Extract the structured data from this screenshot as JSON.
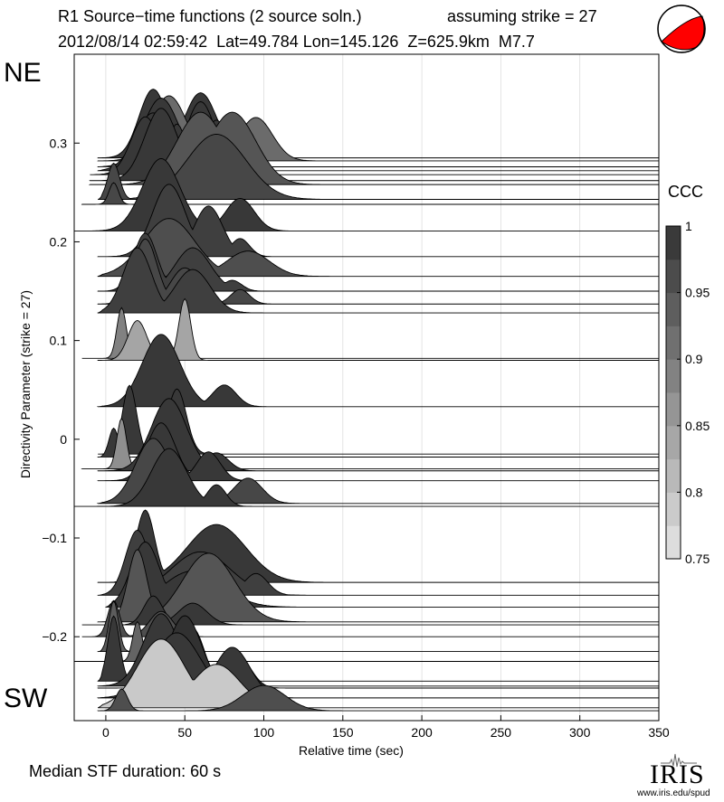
{
  "header": {
    "title_left": "R1 Source−time functions (2 source soln.)",
    "title_right": "assuming strike = 27",
    "event_line": "2012/08/14 02:59:42  Lat=49.784 Lon=145.126  Z=625.9km  M7.7"
  },
  "labels": {
    "ne": "NE",
    "sw": "SW"
  },
  "footer": {
    "median": "Median STF duration: 60 s",
    "logo_text": "IRIS",
    "logo_url": "www.iris.edu/spud"
  },
  "colors": {
    "fill_base": "#333333",
    "outline": "#000000",
    "grid": "#dddddd"
  },
  "chart_data": {
    "type": "area",
    "xlabel": "Relative time (sec)",
    "ylabel": "Directivity Parameter (strike = 27)",
    "xlim": [
      -20,
      350
    ],
    "ylim": [
      -0.285,
      0.39
    ],
    "xticks": [
      0,
      50,
      100,
      150,
      200,
      250,
      300,
      350
    ],
    "yticks": [
      -0.2,
      -0.1,
      0,
      0.1,
      0.2,
      0.3
    ],
    "ytick_labels": [
      "−0.2",
      "−0.1",
      "0",
      "0.1",
      "0.2",
      "0.3"
    ],
    "colorbar": {
      "label": "CCC",
      "ticks": [
        0.75,
        0.8,
        0.85,
        0.9,
        0.95,
        1
      ],
      "tick_labels": [
        "0.75",
        "0.8",
        "0.85",
        "0.9",
        "0.95",
        "1"
      ],
      "range": [
        0.75,
        1
      ]
    },
    "stfs": [
      {
        "y": 0.285,
        "t0": -5,
        "ccc": 0.99,
        "peaks": [
          [
            30,
            0.95,
            12
          ],
          [
            60,
            0.9,
            14
          ]
        ]
      },
      {
        "y": 0.282,
        "t0": -5,
        "ccc": 0.92,
        "peaks": [
          [
            40,
            0.9,
            15
          ],
          [
            95,
            0.6,
            14
          ]
        ]
      },
      {
        "y": 0.276,
        "t0": -5,
        "ccc": 0.99,
        "peaks": [
          [
            35,
            0.95,
            15
          ],
          [
            60,
            0.9,
            12
          ]
        ]
      },
      {
        "y": 0.272,
        "t0": -5,
        "ccc": 0.99,
        "peaks": [
          [
            30,
            0.8,
            15
          ],
          [
            70,
            0.7,
            10
          ]
        ]
      },
      {
        "y": 0.268,
        "t0": -10,
        "ccc": 0.99,
        "peaks": [
          [
            25,
            0.8,
            12
          ],
          [
            45,
            0.7,
            8
          ]
        ]
      },
      {
        "y": 0.262,
        "t0": -10,
        "ccc": 0.99,
        "peaks": [
          [
            35,
            1.0,
            14
          ],
          [
            80,
            0.9,
            12
          ]
        ]
      },
      {
        "y": 0.258,
        "t0": -10,
        "ccc": 0.95,
        "peaks": [
          [
            60,
            1.0,
            20
          ],
          [
            80,
            1.0,
            20
          ]
        ]
      },
      {
        "y": 0.243,
        "t0": -5,
        "ccc": 0.97,
        "peaks": [
          [
            5,
            0.5,
            5
          ],
          [
            70,
            0.9,
            25
          ]
        ]
      },
      {
        "y": 0.238,
        "t0": -15,
        "ccc": 0.97,
        "peaks": [
          [
            5,
            0.3,
            4
          ]
        ]
      },
      {
        "y": 0.211,
        "t0": -20,
        "ccc": 0.99,
        "peaks": [
          [
            35,
            1.0,
            16
          ],
          [
            85,
            0.45,
            12
          ]
        ]
      },
      {
        "y": 0.185,
        "t0": -5,
        "ccc": 0.98,
        "peaks": [
          [
            40,
            1.0,
            14
          ],
          [
            65,
            0.7,
            12
          ],
          [
            85,
            0.25,
            8
          ]
        ]
      },
      {
        "y": 0.165,
        "t0": -5,
        "ccc": 0.96,
        "peaks": [
          [
            40,
            0.8,
            22
          ],
          [
            90,
            0.35,
            18
          ]
        ]
      },
      {
        "y": 0.15,
        "t0": -5,
        "ccc": 0.98,
        "peaks": [
          [
            25,
            0.8,
            10
          ],
          [
            55,
            0.6,
            15
          ],
          [
            80,
            0.15,
            8
          ]
        ]
      },
      {
        "y": 0.137,
        "t0": -5,
        "ccc": 0.97,
        "peaks": [
          [
            25,
            0.9,
            10
          ],
          [
            50,
            0.5,
            12
          ],
          [
            85,
            0.2,
            8
          ]
        ]
      },
      {
        "y": 0.128,
        "t0": -5,
        "ccc": 0.98,
        "peaks": [
          [
            20,
            0.9,
            12
          ],
          [
            55,
            0.6,
            15
          ]
        ]
      },
      {
        "y": 0.082,
        "t0": -15,
        "ccc": 0.89,
        "peaks": [
          [
            10,
            0.7,
            4
          ]
        ]
      },
      {
        "y": 0.08,
        "t0": -5,
        "ccc": 0.84,
        "peaks": [
          [
            20,
            0.55,
            8
          ],
          [
            50,
            0.85,
            5
          ]
        ]
      },
      {
        "y": 0.033,
        "t0": -5,
        "ccc": 0.99,
        "peaks": [
          [
            35,
            1.0,
            16
          ],
          [
            75,
            0.3,
            10
          ]
        ]
      },
      {
        "y": -0.015,
        "t0": -5,
        "ccc": 0.99,
        "peaks": [
          [
            15,
            0.95,
            6
          ],
          [
            45,
            0.9,
            8
          ]
        ]
      },
      {
        "y": -0.018,
        "t0": -5,
        "ccc": 0.99,
        "peaks": [
          [
            5,
            0.4,
            4
          ],
          [
            45,
            0.5,
            6
          ]
        ]
      },
      {
        "y": -0.03,
        "t0": -15,
        "ccc": 0.87,
        "peaks": [
          [
            10,
            0.7,
            4
          ]
        ]
      },
      {
        "y": -0.032,
        "t0": -5,
        "ccc": 0.99,
        "peaks": [
          [
            40,
            1.0,
            15
          ],
          [
            70,
            0.25,
            10
          ]
        ]
      },
      {
        "y": -0.042,
        "t0": -5,
        "ccc": 0.99,
        "peaks": [
          [
            35,
            0.8,
            12
          ],
          [
            65,
            0.4,
            10
          ]
        ]
      },
      {
        "y": -0.065,
        "t0": -5,
        "ccc": 0.97,
        "peaks": [
          [
            30,
            0.9,
            15
          ],
          [
            90,
            0.35,
            12
          ]
        ]
      },
      {
        "y": -0.068,
        "t0": -20,
        "ccc": 0.99,
        "peaks": [
          [
            40,
            0.8,
            15
          ],
          [
            70,
            0.3,
            8
          ]
        ]
      },
      {
        "y": -0.145,
        "t0": -5,
        "ccc": 0.99,
        "peaks": [
          [
            25,
            1.0,
            8
          ],
          [
            70,
            0.8,
            25
          ]
        ]
      },
      {
        "y": -0.158,
        "t0": -5,
        "ccc": 0.98,
        "peaks": [
          [
            20,
            0.9,
            10
          ],
          [
            60,
            0.6,
            25
          ],
          [
            95,
            0.3,
            10
          ]
        ]
      },
      {
        "y": -0.17,
        "t0": 0,
        "ccc": 0.99,
        "peaks": [
          [
            25,
            0.9,
            12
          ],
          [
            55,
            0.5,
            25
          ]
        ]
      },
      {
        "y": -0.185,
        "t0": -5,
        "ccc": 0.95,
        "peaks": [
          [
            20,
            1.0,
            8
          ],
          [
            65,
            0.95,
            22
          ]
        ]
      },
      {
        "y": -0.188,
        "t0": -15,
        "ccc": 0.99,
        "peaks": [
          [
            30,
            0.4,
            8
          ],
          [
            55,
            0.3,
            12
          ]
        ]
      },
      {
        "y": -0.2,
        "t0": -15,
        "ccc": 0.96,
        "peaks": [
          [
            5,
            0.5,
            5
          ],
          [
            35,
            0.35,
            10
          ]
        ]
      },
      {
        "y": -0.215,
        "t0": -5,
        "ccc": 0.94,
        "peaks": [
          [
            5,
            0.7,
            4
          ]
        ]
      },
      {
        "y": -0.225,
        "t0": -20,
        "ccc": 0.93,
        "peaks": [
          [
            20,
            0.55,
            4
          ]
        ]
      },
      {
        "y": -0.245,
        "t0": -5,
        "ccc": 0.99,
        "peaks": [
          [
            5,
            0.9,
            5
          ],
          [
            30,
            0.6,
            6
          ]
        ]
      },
      {
        "y": -0.25,
        "t0": -5,
        "ccc": 0.99,
        "peaks": [
          [
            35,
            1.0,
            15
          ],
          [
            55,
            0.8,
            10
          ]
        ]
      },
      {
        "y": -0.252,
        "t0": -5,
        "ccc": 1.0,
        "peaks": [
          [
            50,
            1.0,
            14
          ],
          [
            85,
            0.4,
            10
          ]
        ]
      },
      {
        "y": -0.262,
        "t0": -5,
        "ccc": 0.99,
        "peaks": [
          [
            45,
            0.9,
            20
          ],
          [
            80,
            0.7,
            15
          ]
        ]
      },
      {
        "y": -0.272,
        "t0": -5,
        "ccc": 0.79,
        "peaks": [
          [
            35,
            0.95,
            20
          ],
          [
            70,
            0.6,
            20
          ]
        ]
      },
      {
        "y": -0.275,
        "t0": -5,
        "ccc": 0.96,
        "peaks": [
          [
            10,
            0.3,
            5
          ],
          [
            100,
            0.35,
            18
          ]
        ]
      }
    ]
  }
}
